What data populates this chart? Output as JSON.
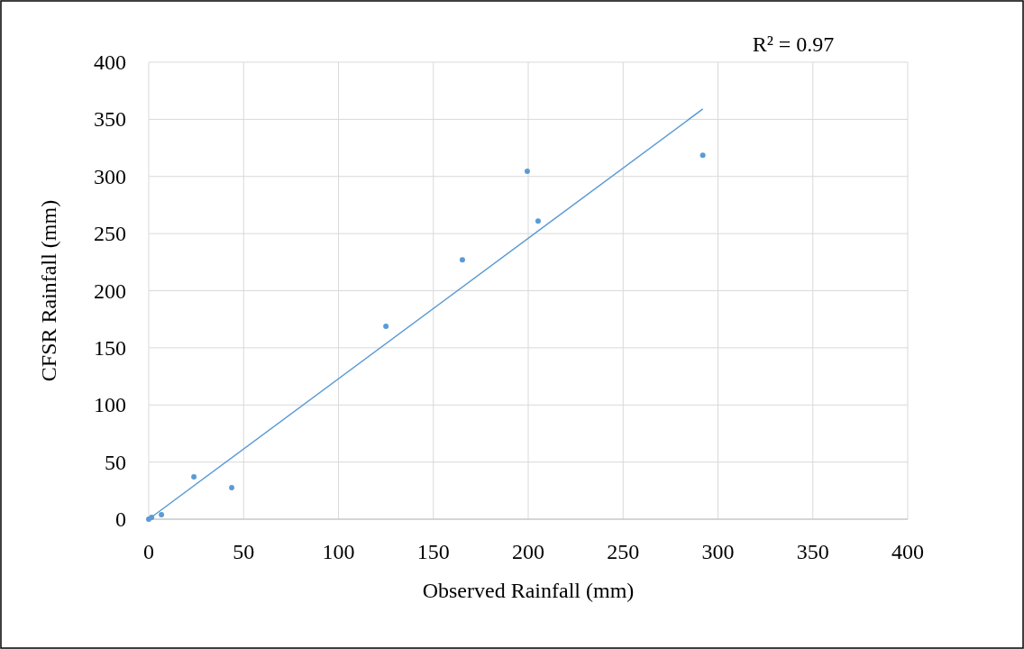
{
  "chart_data": {
    "type": "scatter",
    "xlabel": "Observed Rainfall (mm)",
    "ylabel": "CFSR Rainfall (mm)",
    "annotations": [
      "R² = 0.97"
    ],
    "xlim": [
      0,
      400
    ],
    "xticks": [
      0,
      50,
      100,
      150,
      200,
      250,
      300,
      350,
      400
    ],
    "ylim": [
      0,
      400
    ],
    "yticks": [
      0,
      50,
      100,
      150,
      200,
      250,
      300,
      350,
      400
    ],
    "grid": true,
    "marker": "circle",
    "series": [
      {
        "color": "#5b9bd5",
        "x": [
          0,
          1.5,
          6.7,
          23.8,
          43.7,
          125,
          165.3,
          199.5,
          205.2,
          292
        ],
        "values": [
          0,
          1.6,
          4,
          37,
          27.6,
          168.8,
          227,
          304.5,
          261,
          318.5
        ]
      },
      {
        "type": "line",
        "marker": "none",
        "color": "#5b9bd5",
        "x": [
          0,
          292
        ],
        "values": [
          0,
          359
        ]
      }
    ]
  }
}
